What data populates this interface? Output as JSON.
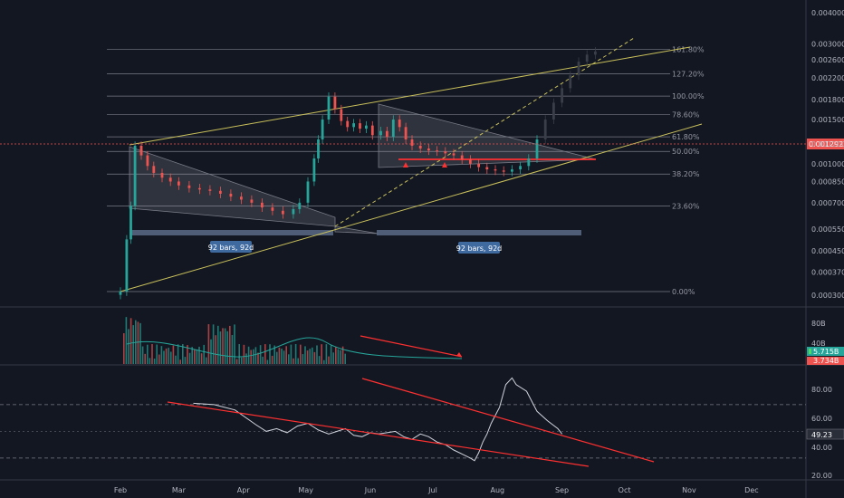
{
  "chart_data": [
    {
      "type": "candlestick",
      "panel": "price",
      "y_axis_scale": "log",
      "ylim": [
        0.00029,
        0.0042
      ],
      "xlim_months": [
        "Feb",
        "Dec"
      ],
      "y_ticks": [
        "0.0040000",
        "0.0030000",
        "0.0026000",
        "0.0022000",
        "0.0018000",
        "0.0015000",
        "0.0012000",
        "0.0010000",
        "0.0008500",
        "0.0007000",
        "0.0005500",
        "0.0004500",
        "0.0003700",
        "0.0003000"
      ],
      "current_price": "0.0012921",
      "fib_levels": [
        {
          "label": "0.00%",
          "price": 0.00031
        },
        {
          "label": "23.60%",
          "price": 0.00068
        },
        {
          "label": "38.20%",
          "price": 0.00091
        },
        {
          "label": "50.00%",
          "price": 0.00112
        },
        {
          "label": "61.80%",
          "price": 0.00128
        },
        {
          "label": "78.60%",
          "price": 0.00157
        },
        {
          "label": "100.00%",
          "price": 0.00186
        },
        {
          "label": "127.20%",
          "price": 0.00228
        },
        {
          "label": "161.80%",
          "price": 0.00286
        }
      ],
      "range_labels": [
        "92 bars, 92d",
        "92 bars, 92d"
      ],
      "x_ticks": [
        "Feb",
        "Mar",
        "Apr",
        "May",
        "Jun",
        "Jul",
        "Aug",
        "Sep",
        "Oct",
        "Nov",
        "Dec"
      ],
      "series": [
        {
          "style": "candles",
          "x_day": [
            0,
            3,
            5,
            7,
            10,
            13,
            16,
            20,
            24,
            28,
            33,
            38,
            43,
            48,
            53,
            58,
            63,
            68,
            73,
            78,
            83,
            86,
            90,
            93,
            95,
            97,
            100,
            103,
            106,
            109,
            112,
            115,
            118,
            121,
            125,
            128,
            131,
            134,
            137,
            140,
            144,
            148,
            152,
            156,
            160,
            164,
            168,
            172,
            176,
            180,
            184,
            188,
            192,
            196,
            200,
            204,
            208,
            212,
            216,
            220,
            224,
            228
          ],
          "close": [
            0.00031,
            0.0005,
            0.00068,
            0.00118,
            0.00108,
            0.00098,
            0.00092,
            0.00088,
            0.00085,
            0.00082,
            0.0008,
            0.00079,
            0.00078,
            0.00076,
            0.00074,
            0.00072,
            0.0007,
            0.00067,
            0.00065,
            0.00063,
            0.00066,
            0.0007,
            0.00085,
            0.00105,
            0.00125,
            0.0015,
            0.00185,
            0.00165,
            0.00148,
            0.0014,
            0.00145,
            0.00138,
            0.00142,
            0.0013,
            0.00135,
            0.00128,
            0.0015,
            0.0014,
            0.00125,
            0.00118,
            0.00115,
            0.00113,
            0.00112,
            0.0011,
            0.00108,
            0.00104,
            0.001,
            0.00097,
            0.00095,
            0.00094,
            0.00093,
            0.00095,
            0.00098,
            0.00105,
            0.00125,
            0.0015,
            0.00175,
            0.002,
            0.00225,
            0.00255,
            0.00272,
            0.0028
          ]
        }
      ]
    },
    {
      "type": "bar",
      "panel": "volume",
      "y_ticks": [
        "80B",
        "40B"
      ],
      "current_values": [
        "5.715B",
        "3.734B"
      ],
      "moving_average": true
    },
    {
      "type": "line",
      "panel": "rsi",
      "y_ticks": [
        "80.00",
        "60.00",
        "40.00",
        "20.00"
      ],
      "levels": [
        70,
        30
      ],
      "current_value": "49.23",
      "ylim": [
        15,
        95
      ],
      "x_day": [
        35,
        45,
        55,
        65,
        70,
        75,
        80,
        85,
        90,
        95,
        100,
        104,
        108,
        112,
        116,
        120,
        124,
        128,
        132,
        136,
        140,
        144,
        148,
        152,
        156,
        160,
        164,
        168,
        170,
        172,
        174,
        176,
        178,
        182,
        185,
        188,
        190,
        195,
        200,
        205,
        210,
        212
      ],
      "values": [
        71,
        70,
        66,
        55,
        50,
        52,
        49,
        54,
        56,
        51,
        48,
        50,
        52,
        47,
        46,
        49,
        48,
        49,
        50,
        46,
        44,
        48,
        46,
        42,
        40,
        36,
        33,
        30,
        28,
        34,
        42,
        48,
        56,
        68,
        85,
        90,
        85,
        80,
        65,
        58,
        52,
        48
      ]
    }
  ],
  "colors": {
    "background": "#131722",
    "up": "#26a69a",
    "down": "#ef5350",
    "fib_line": "#b2b5be",
    "trend": "#c9c05a",
    "red_line": "#ff3030",
    "current_price_bg": "#ef5350",
    "badge_bg": "#3f6aa0"
  }
}
